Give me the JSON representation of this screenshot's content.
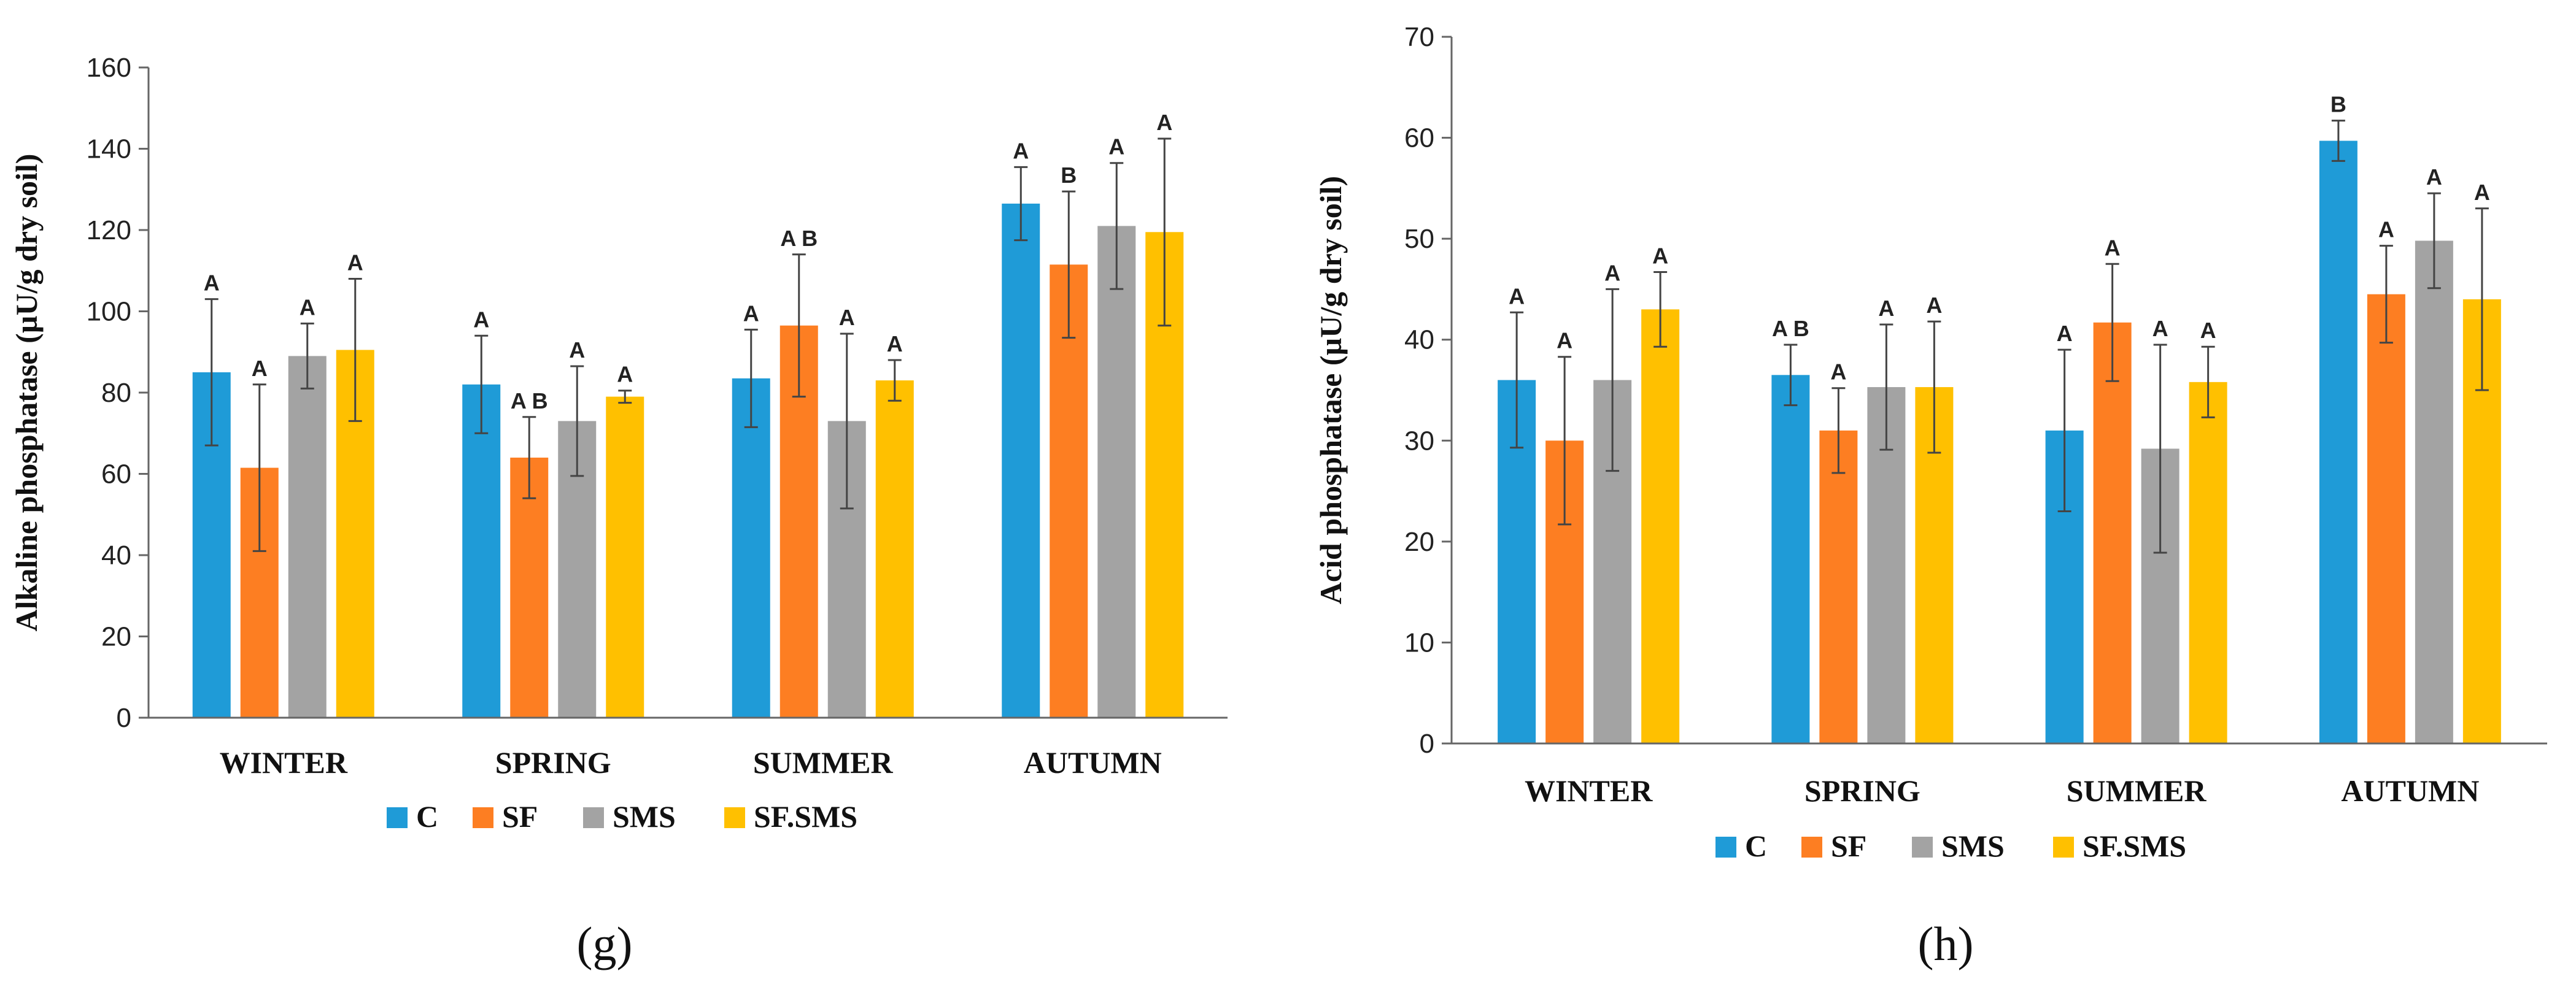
{
  "colors": {
    "C": "#1f9bd7",
    "SF": "#fd7e22",
    "SMS": "#a3a3a3",
    "SF.SMS": "#ffc000"
  },
  "chart_data": [
    {
      "type": "bar",
      "panel": "(g)",
      "ylabel": "Alkaline phosphatase (µU/g dry soil)",
      "ylim": [
        0,
        160
      ],
      "yticks": [
        0,
        20,
        40,
        60,
        80,
        100,
        120,
        140,
        160
      ],
      "categories": [
        "WINTER",
        "SPRING",
        "SUMMER",
        "AUTUMN"
      ],
      "legend": {
        "placement": "bottom"
      },
      "series": [
        {
          "name": "C",
          "values": [
            85,
            82,
            83.5,
            126.5
          ],
          "errors": [
            18,
            12,
            12,
            9
          ],
          "letters": [
            "A",
            "A",
            "A",
            "A"
          ]
        },
        {
          "name": "SF",
          "values": [
            61.5,
            64,
            96.5,
            111.5
          ],
          "errors": [
            20.5,
            10,
            17.5,
            18
          ],
          "letters": [
            "A",
            "A B",
            "A B",
            "B"
          ]
        },
        {
          "name": "SMS",
          "values": [
            89,
            73,
            73,
            121
          ],
          "errors": [
            8,
            13.5,
            21.5,
            15.5
          ],
          "letters": [
            "A",
            "A",
            "A",
            "A"
          ]
        },
        {
          "name": "SF.SMS",
          "values": [
            90.5,
            79,
            83,
            119.5
          ],
          "errors": [
            17.5,
            1.5,
            5,
            23
          ],
          "letters": [
            "A",
            "A",
            "A",
            "A"
          ]
        }
      ]
    },
    {
      "type": "bar",
      "panel": "(h)",
      "ylabel": "Acid phosphatase (µU/g dry soil)",
      "ylim": [
        0,
        70
      ],
      "yticks": [
        0,
        10,
        20,
        30,
        40,
        50,
        60,
        70
      ],
      "categories": [
        "WINTER",
        "SPRING",
        "SUMMER",
        "AUTUMN"
      ],
      "legend": {
        "placement": "bottom"
      },
      "series": [
        {
          "name": "C",
          "values": [
            36,
            36.5,
            31,
            59.7
          ],
          "errors": [
            6.7,
            3,
            8,
            2
          ],
          "letters": [
            "A",
            "A B",
            "A",
            "B"
          ]
        },
        {
          "name": "SF",
          "values": [
            30,
            31,
            41.7,
            44.5
          ],
          "errors": [
            8.3,
            4.2,
            5.8,
            4.8
          ],
          "letters": [
            "A",
            "A",
            "A",
            "A"
          ]
        },
        {
          "name": "SMS",
          "values": [
            36,
            35.3,
            29.2,
            49.8
          ],
          "errors": [
            9,
            6.2,
            10.3,
            4.7
          ],
          "letters": [
            "A",
            "A",
            "A",
            "A"
          ]
        },
        {
          "name": "SF.SMS",
          "values": [
            43,
            35.3,
            35.8,
            44
          ],
          "errors": [
            3.7,
            6.5,
            3.5,
            9
          ],
          "letters": [
            "A",
            "A",
            "A",
            "A"
          ]
        }
      ]
    }
  ]
}
